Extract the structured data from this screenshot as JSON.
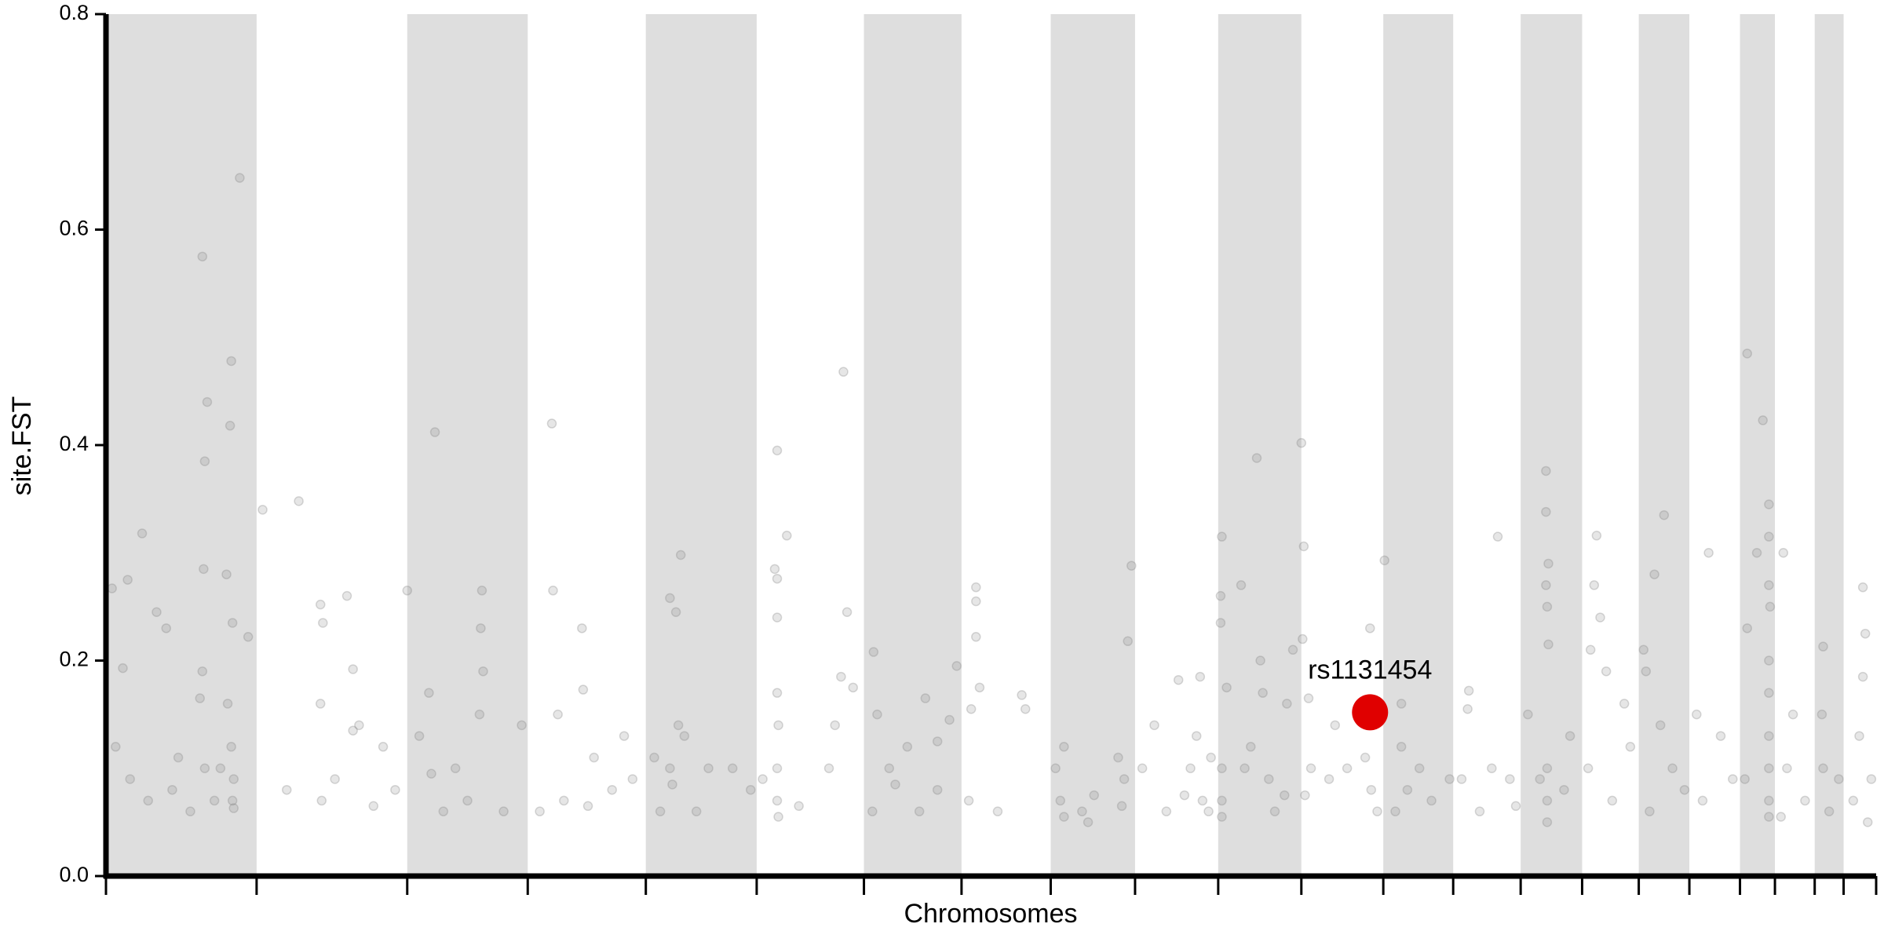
{
  "chart_data": {
    "type": "scatter",
    "x_label": "Chromosomes",
    "y_label": "site.FST",
    "xlim": [
      0,
      1469
    ],
    "ylim": [
      0,
      0.8
    ],
    "xticks": [
      0,
      125,
      250,
      350,
      448,
      540,
      629,
      710,
      784,
      854,
      923,
      992,
      1060,
      1118,
      1174,
      1225,
      1272,
      1314,
      1356,
      1385,
      1418,
      1442,
      1469
    ],
    "yticks": [
      {
        "value": 0,
        "label": "0.0"
      },
      0.2,
      0.4,
      0.6,
      0.8
    ],
    "band_color": "#dedede",
    "color": "#808080",
    "x": [
      80,
      81,
      84,
      82,
      111,
      103,
      104,
      100,
      105,
      30,
      42,
      18,
      14,
      5,
      118,
      80,
      78,
      101,
      104,
      50,
      8,
      20,
      35,
      55,
      90,
      105,
      106,
      95,
      60,
      70,
      106,
      82,
      130,
      160,
      178,
      180,
      200,
      205,
      210,
      230,
      179,
      190,
      150,
      222,
      178,
      240,
      205,
      250,
      273,
      268,
      312,
      311,
      310,
      260,
      280,
      300,
      313,
      330,
      345,
      290,
      270,
      370,
      371,
      395,
      396,
      375,
      405,
      380,
      420,
      360,
      437,
      430,
      400,
      477,
      468,
      473,
      468,
      470,
      480,
      455,
      460,
      490,
      500,
      520,
      535,
      475,
      557,
      565,
      555,
      557,
      557,
      557,
      558,
      557,
      557,
      558,
      545,
      575,
      600,
      610,
      615,
      612,
      620,
      605,
      637,
      640,
      636,
      650,
      665,
      680,
      690,
      700,
      706,
      655,
      690,
      675,
      722,
      722,
      722,
      718,
      725,
      716,
      740,
      760,
      763,
      788,
      795,
      792,
      795,
      810,
      820,
      840,
      845,
      843,
      851,
      848,
      815,
      860,
      870,
      880,
      890,
      900,
      905,
      910,
      917,
      915,
      908,
      895,
      926,
      925,
      925,
      930,
      926,
      926,
      926,
      942,
      955,
      958,
      960,
      950,
      965,
      970,
      980,
      985,
      978,
      945,
      992,
      994,
      993,
      998,
      1000,
      995,
      1015,
      1030,
      1045,
      1049,
      1050,
      1055,
      1020,
      1061,
      1075,
      1075,
      1090,
      1100,
      1115,
      1080,
      1070,
      1131,
      1130,
      1125,
      1140,
      1155,
      1165,
      1170,
      1150,
      1195,
      1195,
      1197,
      1195,
      1196,
      1197,
      1180,
      1196,
      1196,
      1196,
      1215,
      1210,
      1190,
      1237,
      1235,
      1240,
      1245,
      1230,
      1250,
      1260,
      1265,
      1232,
      1293,
      1285,
      1276,
      1278,
      1290,
      1300,
      1310,
      1281,
      1330,
      1320,
      1340,
      1350,
      1325,
      1362,
      1375,
      1380,
      1380,
      1380,
      1381,
      1380,
      1380,
      1380,
      1380,
      1380,
      1380,
      1370,
      1362,
      1360,
      1392,
      1400,
      1395,
      1410,
      1390,
      1425,
      1424,
      1425,
      1430,
      1438,
      1458,
      1460,
      1458,
      1455,
      1465,
      1450,
      1462
    ],
    "values": [
      0.575,
      0.285,
      0.44,
      0.385,
      0.648,
      0.418,
      0.478,
      0.28,
      0.235,
      0.318,
      0.245,
      0.275,
      0.193,
      0.267,
      0.222,
      0.19,
      0.165,
      0.16,
      0.12,
      0.23,
      0.12,
      0.09,
      0.07,
      0.08,
      0.07,
      0.07,
      0.09,
      0.1,
      0.11,
      0.06,
      0.063,
      0.1,
      0.34,
      0.348,
      0.252,
      0.235,
      0.26,
      0.192,
      0.14,
      0.12,
      0.07,
      0.09,
      0.08,
      0.065,
      0.16,
      0.08,
      0.135,
      0.265,
      0.412,
      0.17,
      0.265,
      0.23,
      0.15,
      0.13,
      0.06,
      0.07,
      0.19,
      0.06,
      0.14,
      0.1,
      0.095,
      0.42,
      0.265,
      0.23,
      0.173,
      0.15,
      0.11,
      0.07,
      0.08,
      0.06,
      0.09,
      0.13,
      0.065,
      0.298,
      0.258,
      0.245,
      0.1,
      0.085,
      0.13,
      0.11,
      0.06,
      0.06,
      0.1,
      0.1,
      0.08,
      0.14,
      0.395,
      0.316,
      0.285,
      0.276,
      0.24,
      0.17,
      0.14,
      0.1,
      0.07,
      0.055,
      0.09,
      0.065,
      0.1,
      0.185,
      0.245,
      0.468,
      0.175,
      0.14,
      0.208,
      0.15,
      0.06,
      0.1,
      0.12,
      0.165,
      0.08,
      0.145,
      0.195,
      0.085,
      0.125,
      0.06,
      0.268,
      0.255,
      0.222,
      0.155,
      0.175,
      0.07,
      0.06,
      0.168,
      0.155,
      0.1,
      0.12,
      0.07,
      0.055,
      0.06,
      0.075,
      0.11,
      0.09,
      0.065,
      0.288,
      0.218,
      0.05,
      0.1,
      0.14,
      0.06,
      0.182,
      0.1,
      0.13,
      0.07,
      0.11,
      0.06,
      0.185,
      0.075,
      0.315,
      0.26,
      0.235,
      0.175,
      0.1,
      0.07,
      0.055,
      0.27,
      0.388,
      0.2,
      0.17,
      0.12,
      0.09,
      0.06,
      0.16,
      0.21,
      0.075,
      0.1,
      0.402,
      0.306,
      0.22,
      0.165,
      0.1,
      0.075,
      0.09,
      0.1,
      0.11,
      0.23,
      0.08,
      0.06,
      0.14,
      0.293,
      0.16,
      0.12,
      0.1,
      0.07,
      0.09,
      0.08,
      0.06,
      0.172,
      0.155,
      0.09,
      0.06,
      0.315,
      0.09,
      0.065,
      0.1,
      0.376,
      0.338,
      0.29,
      0.27,
      0.25,
      0.215,
      0.15,
      0.1,
      0.07,
      0.05,
      0.13,
      0.08,
      0.09,
      0.316,
      0.27,
      0.24,
      0.19,
      0.1,
      0.07,
      0.16,
      0.12,
      0.21,
      0.335,
      0.28,
      0.21,
      0.19,
      0.14,
      0.1,
      0.08,
      0.06,
      0.3,
      0.15,
      0.13,
      0.09,
      0.07,
      0.485,
      0.423,
      0.345,
      0.315,
      0.27,
      0.25,
      0.2,
      0.17,
      0.13,
      0.1,
      0.07,
      0.055,
      0.3,
      0.23,
      0.09,
      0.3,
      0.15,
      0.1,
      0.07,
      0.055,
      0.213,
      0.15,
      0.1,
      0.06,
      0.09,
      0.268,
      0.225,
      0.185,
      0.13,
      0.09,
      0.07,
      0.05
    ],
    "highlight": {
      "label": "rs1131454",
      "x": 1049,
      "value": 0.152,
      "color": "#e00000"
    }
  }
}
